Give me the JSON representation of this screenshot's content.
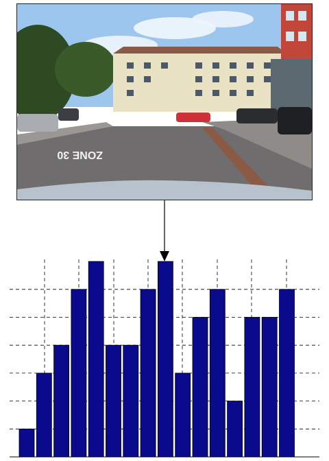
{
  "photo": {
    "road_marking_text": "ZONE 30"
  },
  "colors": {
    "bar_fill": "#0a0a8c",
    "bar_stroke": "#000000",
    "grid": "#000000",
    "arrow": "#000000"
  },
  "chart_data": {
    "type": "bar",
    "categories": [
      "",
      "",
      "",
      "",
      "",
      "",
      "",
      "",
      "",
      "",
      "",
      "",
      "",
      "",
      "",
      ""
    ],
    "values": [
      1,
      3,
      4,
      6,
      7,
      4,
      4,
      6,
      7,
      3,
      5,
      6,
      2,
      5,
      5,
      6
    ],
    "ylim": [
      0,
      7
    ],
    "grid": true,
    "grid_style": "dashed",
    "title": "",
    "xlabel": "",
    "ylabel": ""
  }
}
